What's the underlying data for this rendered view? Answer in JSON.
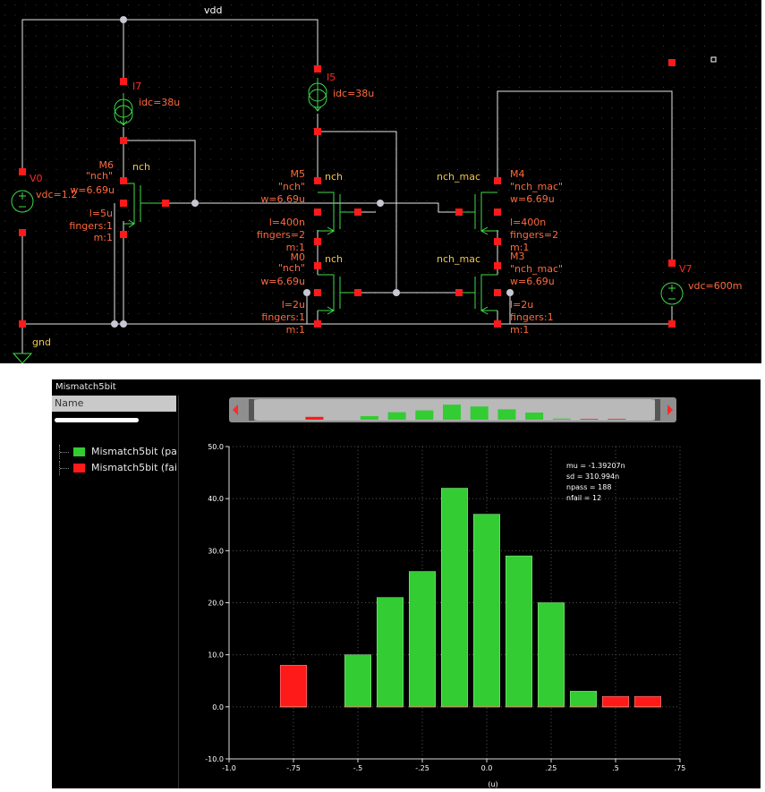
{
  "schematic": {
    "net_vdd": "vdd",
    "net_gnd": "gnd",
    "sources": [
      {
        "name": "I7",
        "param": "idc=38u"
      },
      {
        "name": "I5",
        "param": "idc=38u"
      },
      {
        "name": "V0",
        "param": "vdc=1.2"
      },
      {
        "name": "V7",
        "param": "vdc=600m"
      }
    ],
    "transistors": [
      {
        "name": "M6",
        "model": "\"nch\"",
        "label": "nch",
        "w": "w=6.69u",
        "l": "l=5u",
        "fingers": "fingers:1",
        "m": "m:1"
      },
      {
        "name": "M5",
        "model": "\"nch\"",
        "label": "nch",
        "w": "w=6.69u",
        "l": "l=400n",
        "fingers": "fingers=2",
        "m": "m:1"
      },
      {
        "name": "M0",
        "model": "\"nch\"",
        "label": "nch",
        "w": "w=6.69u",
        "l": "l=2u",
        "fingers": "fingers:1",
        "m": "m:1"
      },
      {
        "name": "M4",
        "model": "\"nch_mac\"",
        "label": "nch_mac",
        "w": "w=6.69u",
        "l": "l=400n",
        "fingers": "fingers=2",
        "m": "m:1"
      },
      {
        "name": "M3",
        "model": "\"nch_mac\"",
        "label": "nch_mac",
        "w": "w=6.69u",
        "l": "l=2u",
        "fingers": "fingers:1",
        "m": "m:1"
      }
    ]
  },
  "window": {
    "title": "Mismatch5bit"
  },
  "left_panel": {
    "column_header": "Name"
  },
  "legend": [
    {
      "label": "Mismatch5bit (pa",
      "color": "#33cc33"
    },
    {
      "label": "Mismatch5bit (fai",
      "color": "#ff1a1a"
    }
  ],
  "stats": [
    "mu = -1.39207n",
    "sd = 310.994n",
    "npass = 188",
    "nfail = 12"
  ],
  "colors": {
    "pass": "#33cc33",
    "fail": "#ff1a1a"
  },
  "chart_data": {
    "type": "bar",
    "xlabel": "(u)",
    "x_ticks": [
      "-1.0",
      "-.75",
      "-.5",
      "-.25",
      "0.0",
      ".25",
      ".5",
      ".75"
    ],
    "y_ticks": [
      "-10.0",
      "0.0",
      "10.0",
      "20.0",
      "30.0",
      "40.0",
      "50.0"
    ],
    "xlim": [
      -1.0,
      0.75
    ],
    "ylim": [
      -10,
      50
    ],
    "bin_centers": [
      -0.75,
      -0.625,
      -0.5,
      -0.375,
      -0.25,
      -0.125,
      0.0,
      0.125,
      0.25,
      0.375,
      0.5,
      0.625
    ],
    "series": [
      {
        "name": "Mismatch5bit (pa",
        "values": [
          0,
          0,
          10,
          21,
          26,
          42,
          37,
          29,
          20,
          3,
          0,
          0
        ]
      },
      {
        "name": "Mismatch5bit (fai",
        "values": [
          8,
          0,
          0,
          0,
          0,
          0,
          0,
          0,
          0,
          0,
          2,
          2
        ]
      }
    ]
  }
}
